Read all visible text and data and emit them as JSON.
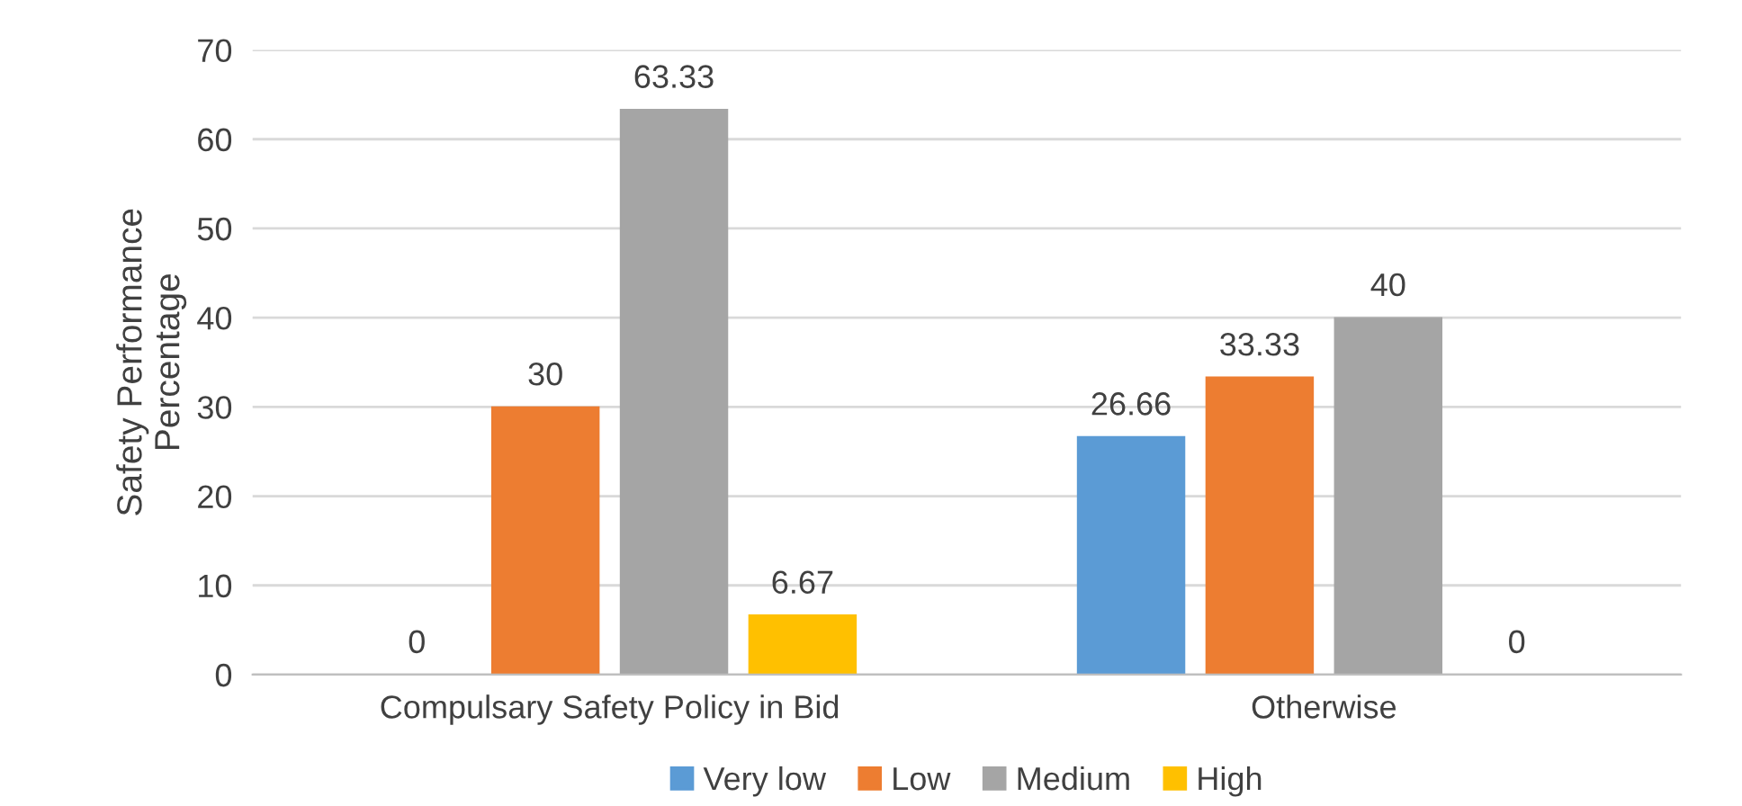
{
  "chart_data": {
    "type": "bar",
    "ylabel": "Safety Performance\nPercentage",
    "categories": [
      "Compulsary Safety Policy in Bid",
      "Otherwise"
    ],
    "series": [
      {
        "name": "Very low",
        "color": "#5b9bd5",
        "values": [
          0,
          26.66
        ]
      },
      {
        "name": "Low",
        "color": "#ed7d31",
        "values": [
          30,
          33.33
        ]
      },
      {
        "name": "Medium",
        "color": "#a5a5a5",
        "values": [
          63.33,
          40
        ]
      },
      {
        "name": "High",
        "color": "#ffc000",
        "values": [
          6.67,
          0
        ]
      }
    ],
    "ylim": [
      0,
      70
    ],
    "yticks": [
      0,
      10,
      20,
      30,
      40,
      50,
      60,
      70
    ],
    "grid": "y",
    "legend": "bottom",
    "data_labels": true
  }
}
